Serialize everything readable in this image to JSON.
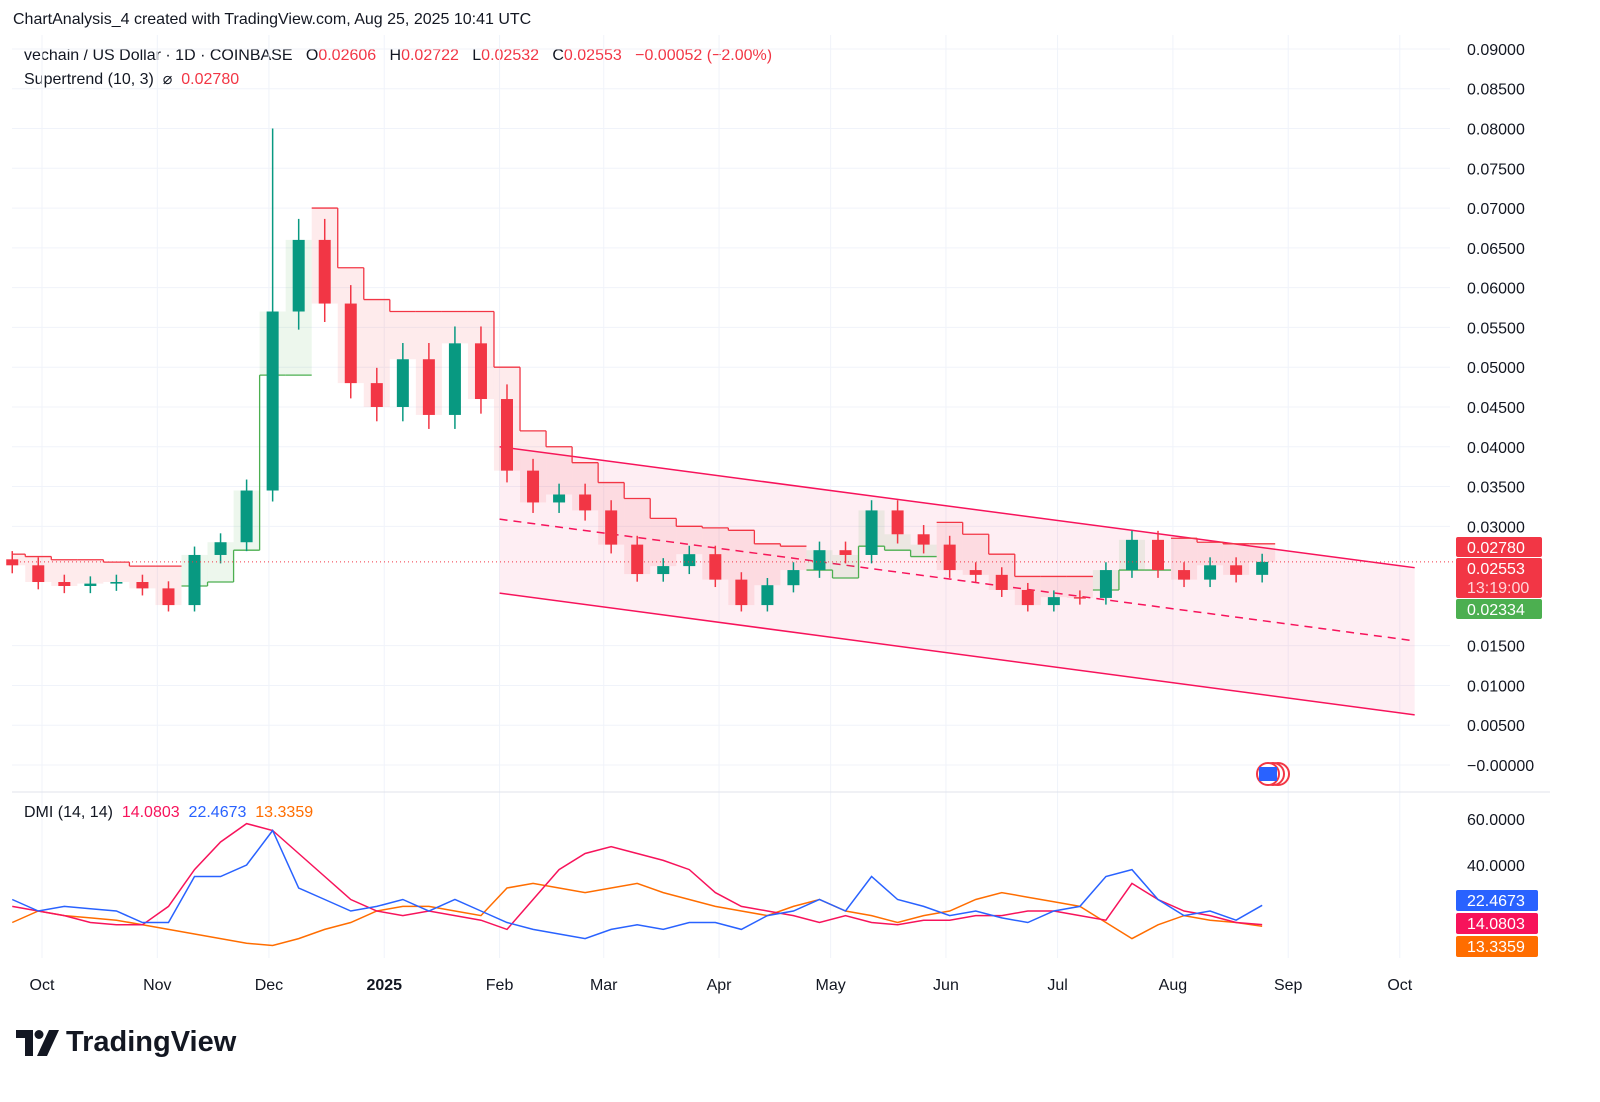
{
  "header": {
    "caption": "ChartAnalysis_4 created with TradingView.com, Aug 25, 2025 10:41 UTC"
  },
  "symbol": {
    "title": "vechain / US Dollar · 1D · COINBASE",
    "o_label": "O",
    "o": "0.02606",
    "h_label": "H",
    "h": "0.02722",
    "l_label": "L",
    "l": "0.02532",
    "c_label": "C",
    "c": "0.02553",
    "change": "−0.00052 (−2.00%)"
  },
  "supertrend_legend": {
    "label": "Supertrend (10, 3)",
    "icon": "hidden-eye-slash-icon",
    "symbol": "⌀",
    "value": "0.02780"
  },
  "dmi_legend": {
    "label": "DMI (14, 14)",
    "minus_di": "14.0803",
    "plus_di": "22.4673",
    "adx": "13.3359"
  },
  "price_labels": {
    "supertrend": "0.02780",
    "last": "0.02553",
    "countdown": "13:19:00",
    "support": "0.02334"
  },
  "dmi_labels": {
    "plus_di": "22.4673",
    "minus_di": "14.0803",
    "adx": "13.3359"
  },
  "colors": {
    "up": "#089981",
    "down": "#f23645",
    "supertrend_up": "#4caf50",
    "supertrend_down": "#f23645",
    "channel": "#f7135b",
    "plus_di": "#2962ff",
    "minus_di": "#f7135b",
    "adx": "#ff6d00"
  },
  "brand": {
    "logo_text": "TradingView",
    "logo_icon": "tradingview-logo-icon"
  },
  "chart_data": {
    "type": "candlestick",
    "interval_shown": "1D (approximated weekly)",
    "x_ticks": [
      {
        "date": "2024-10-01",
        "label": "Oct"
      },
      {
        "date": "2024-11-01",
        "label": "Nov"
      },
      {
        "date": "2024-12-01",
        "label": "Dec"
      },
      {
        "date": "2025-01-01",
        "label": "2025",
        "bold": true
      },
      {
        "date": "2025-02-01",
        "label": "Feb"
      },
      {
        "date": "2025-03-01",
        "label": "Mar"
      },
      {
        "date": "2025-04-01",
        "label": "Apr"
      },
      {
        "date": "2025-05-01",
        "label": "May"
      },
      {
        "date": "2025-06-01",
        "label": "Jun"
      },
      {
        "date": "2025-07-01",
        "label": "Jul"
      },
      {
        "date": "2025-08-01",
        "label": "Aug"
      },
      {
        "date": "2025-09-01",
        "label": "Sep"
      },
      {
        "date": "2025-10-01",
        "label": "Oct"
      }
    ],
    "y_ticks": [
      "0.09000",
      "0.08500",
      "0.08000",
      "0.07500",
      "0.07000",
      "0.06500",
      "0.06000",
      "0.05500",
      "0.05000",
      "0.04500",
      "0.04000",
      "0.03500",
      "0.03000",
      "0.01500",
      "0.01000",
      "0.00500",
      "−0.00000"
    ],
    "ylim": [
      0,
      0.09
    ],
    "dates": [
      "2024-09-23",
      "2024-09-30",
      "2024-10-07",
      "2024-10-14",
      "2024-10-21",
      "2024-10-28",
      "2024-11-04",
      "2024-11-11",
      "2024-11-18",
      "2024-11-25",
      "2024-12-02",
      "2024-12-09",
      "2024-12-16",
      "2024-12-23",
      "2024-12-30",
      "2025-01-06",
      "2025-01-13",
      "2025-01-20",
      "2025-01-27",
      "2025-02-03",
      "2025-02-10",
      "2025-02-17",
      "2025-02-24",
      "2025-03-03",
      "2025-03-10",
      "2025-03-17",
      "2025-03-24",
      "2025-03-31",
      "2025-04-07",
      "2025-04-14",
      "2025-04-21",
      "2025-04-28",
      "2025-05-05",
      "2025-05-12",
      "2025-05-19",
      "2025-05-26",
      "2025-06-02",
      "2025-06-09",
      "2025-06-16",
      "2025-06-23",
      "2025-06-30",
      "2025-07-07",
      "2025-07-14",
      "2025-07-21",
      "2025-07-28",
      "2025-08-04",
      "2025-08-11",
      "2025-08-18",
      "2025-08-25"
    ],
    "close": [
      0.0251,
      0.023,
      0.0225,
      0.0228,
      0.023,
      0.0222,
      0.0201,
      0.0264,
      0.028,
      0.0345,
      0.057,
      0.066,
      0.058,
      0.048,
      0.045,
      0.051,
      0.044,
      0.053,
      0.046,
      0.037,
      0.033,
      0.034,
      0.032,
      0.0277,
      0.024,
      0.025,
      0.0265,
      0.0233,
      0.0201,
      0.0226,
      0.0245,
      0.027,
      0.0264,
      0.032,
      0.029,
      0.0277,
      0.0245,
      0.0239,
      0.022,
      0.0201,
      0.0211,
      0.021,
      0.0245,
      0.0283,
      0.0245,
      0.0233,
      0.0251,
      0.0239,
      0.02553
    ],
    "peak_high": {
      "date": "2024-12-02",
      "value": 0.08
    },
    "supertrend": [
      0.0265,
      0.0262,
      0.0258,
      0.0258,
      0.0255,
      0.025,
      0.025,
      0.0225,
      0.023,
      0.027,
      0.049,
      0.049,
      0.07,
      0.0625,
      0.0585,
      0.057,
      0.057,
      0.057,
      0.057,
      0.05,
      0.042,
      0.04,
      0.038,
      0.0355,
      0.0335,
      0.031,
      0.03,
      0.0298,
      0.0295,
      0.0278,
      0.0275,
      0.0245,
      0.0235,
      0.0275,
      0.027,
      0.0262,
      0.0305,
      0.029,
      0.0265,
      0.0237,
      0.0237,
      0.0237,
      0.022,
      0.0245,
      0.0245,
      0.0285,
      0.028,
      0.0278,
      0.0278
    ],
    "supertrend_dir": [
      "d",
      "d",
      "d",
      "d",
      "d",
      "d",
      "d",
      "u",
      "u",
      "u",
      "u",
      "u",
      "d",
      "d",
      "d",
      "d",
      "d",
      "d",
      "d",
      "d",
      "d",
      "d",
      "d",
      "d",
      "d",
      "d",
      "d",
      "d",
      "d",
      "d",
      "d",
      "u",
      "u",
      "u",
      "u",
      "u",
      "d",
      "d",
      "d",
      "d",
      "d",
      "d",
      "u",
      "u",
      "u",
      "d",
      "d",
      "d",
      "d"
    ],
    "channel": {
      "upper": [
        {
          "date": "2025-02-01",
          "value": 0.04
        },
        {
          "date": "2025-10-05",
          "value": 0.0248
        }
      ],
      "middle": [
        {
          "date": "2025-02-01",
          "value": 0.0309
        },
        {
          "date": "2025-10-05",
          "value": 0.0156
        }
      ],
      "lower": [
        {
          "date": "2025-02-01",
          "value": 0.0216
        },
        {
          "date": "2025-10-05",
          "value": 0.0063
        }
      ]
    },
    "dmi": {
      "y_ticks": [
        "60.0000",
        "40.0000"
      ],
      "ylim": [
        0,
        70
      ],
      "plus_di": [
        25,
        20,
        22,
        21,
        20,
        15,
        15,
        35,
        35,
        40,
        55,
        30,
        25,
        20,
        22,
        25,
        20,
        25,
        20,
        15,
        12,
        10,
        8,
        12,
        14,
        12,
        15,
        15,
        12,
        18,
        20,
        25,
        20,
        35,
        25,
        22,
        18,
        20,
        17,
        15,
        20,
        22,
        35,
        38,
        25,
        18,
        20,
        16,
        22.47
      ],
      "minus_di": [
        22,
        20,
        18,
        15,
        14,
        14,
        22,
        38,
        50,
        58,
        55,
        45,
        35,
        25,
        20,
        18,
        20,
        18,
        16,
        12,
        25,
        38,
        45,
        48,
        45,
        42,
        38,
        28,
        22,
        20,
        18,
        15,
        18,
        15,
        14,
        16,
        16,
        18,
        18,
        20,
        20,
        18,
        16,
        32,
        25,
        20,
        18,
        15,
        14.08
      ],
      "adx": [
        15,
        20,
        18,
        17,
        16,
        14,
        12,
        10,
        8,
        6,
        5,
        8,
        12,
        15,
        20,
        22,
        22,
        20,
        18,
        30,
        32,
        30,
        28,
        30,
        32,
        28,
        25,
        22,
        20,
        18,
        22,
        25,
        20,
        18,
        15,
        18,
        20,
        25,
        28,
        26,
        24,
        22,
        15,
        8,
        14,
        18,
        16,
        15,
        13.34
      ]
    }
  }
}
